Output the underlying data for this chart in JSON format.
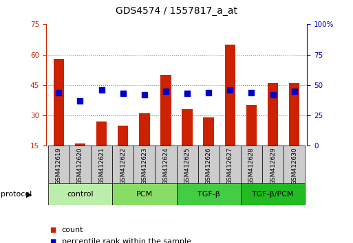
{
  "title": "GDS4574 / 1557817_a_at",
  "samples": [
    "GSM412619",
    "GSM412620",
    "GSM412621",
    "GSM412622",
    "GSM412623",
    "GSM412624",
    "GSM412625",
    "GSM412626",
    "GSM412627",
    "GSM412628",
    "GSM412629",
    "GSM412630"
  ],
  "count_values": [
    58,
    16,
    27,
    25,
    31,
    50,
    33,
    29,
    65,
    35,
    46,
    46
  ],
  "percentile_values": [
    44,
    37,
    46,
    43,
    42,
    45,
    43,
    44,
    46,
    44,
    42,
    45
  ],
  "groups": [
    {
      "label": "control",
      "start": 0,
      "end": 3,
      "color": "#bbeeaa"
    },
    {
      "label": "PCM",
      "start": 3,
      "end": 6,
      "color": "#88dd66"
    },
    {
      "label": "TGF-β",
      "start": 6,
      "end": 9,
      "color": "#44cc44"
    },
    {
      "label": "TGF-β/PCM",
      "start": 9,
      "end": 12,
      "color": "#22bb22"
    }
  ],
  "bar_color": "#cc2200",
  "dot_color": "#0000cc",
  "left_ylim": [
    15,
    75
  ],
  "right_ylim": [
    0,
    100
  ],
  "left_yticks": [
    15,
    30,
    45,
    60,
    75
  ],
  "right_yticks": [
    0,
    25,
    50,
    75,
    100
  ],
  "hlines": [
    30,
    45,
    60
  ],
  "bar_width": 0.5,
  "dot_size": 28,
  "sample_cell_color": "#cccccc",
  "title_fontsize": 10,
  "tick_fontsize": 7.5,
  "legend_marker_size": 7
}
